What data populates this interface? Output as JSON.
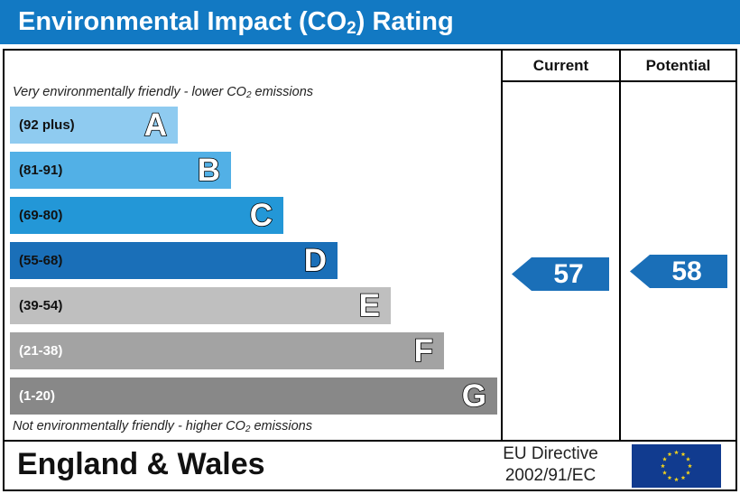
{
  "header": {
    "title_prefix": "Environmental Impact (CO",
    "title_sub": "2",
    "title_suffix": ") Rating"
  },
  "columns": {
    "current_label": "Current",
    "potential_label": "Potential"
  },
  "notes": {
    "top_prefix": "Very environmentally friendly - lower CO",
    "top_sub": "2",
    "top_suffix": " emissions",
    "bottom_prefix": "Not environmentally friendly - higher CO",
    "bottom_sub": "2",
    "bottom_suffix": " emissions"
  },
  "bands": [
    {
      "range": "(92 plus)",
      "letter": "A",
      "color": "#8fcbf0",
      "text_color": "#111111",
      "share": 0.344
    },
    {
      "range": "(81-91)",
      "letter": "B",
      "color": "#52b0e6",
      "text_color": "#111111",
      "share": 0.453
    },
    {
      "range": "(69-80)",
      "letter": "C",
      "color": "#2397d7",
      "text_color": "#111111",
      "share": 0.562
    },
    {
      "range": "(55-68)",
      "letter": "D",
      "color": "#1a6fb8",
      "text_color": "#111111",
      "share": 0.672
    },
    {
      "range": "(39-54)",
      "letter": "E",
      "color": "#bfbfbf",
      "text_color": "#111111",
      "share": 0.781
    },
    {
      "range": "(21-38)",
      "letter": "F",
      "color": "#a3a3a3",
      "text_color": "#ffffff",
      "share": 0.89
    },
    {
      "range": "(1-20)",
      "letter": "G",
      "color": "#888888",
      "text_color": "#ffffff",
      "share": 1.0
    }
  ],
  "ratings": {
    "current": "57",
    "current_band": "D",
    "potential": "58",
    "potential_band": "D",
    "arrow_color": "#1a6fb8"
  },
  "footer": {
    "region": "England & Wales",
    "directive_line1": "EU Directive",
    "directive_line2": "2002/91/EC",
    "flag_icon": "eu-flag-icon",
    "flag_color": "#113b8f",
    "star_color": "#f2d21b"
  }
}
